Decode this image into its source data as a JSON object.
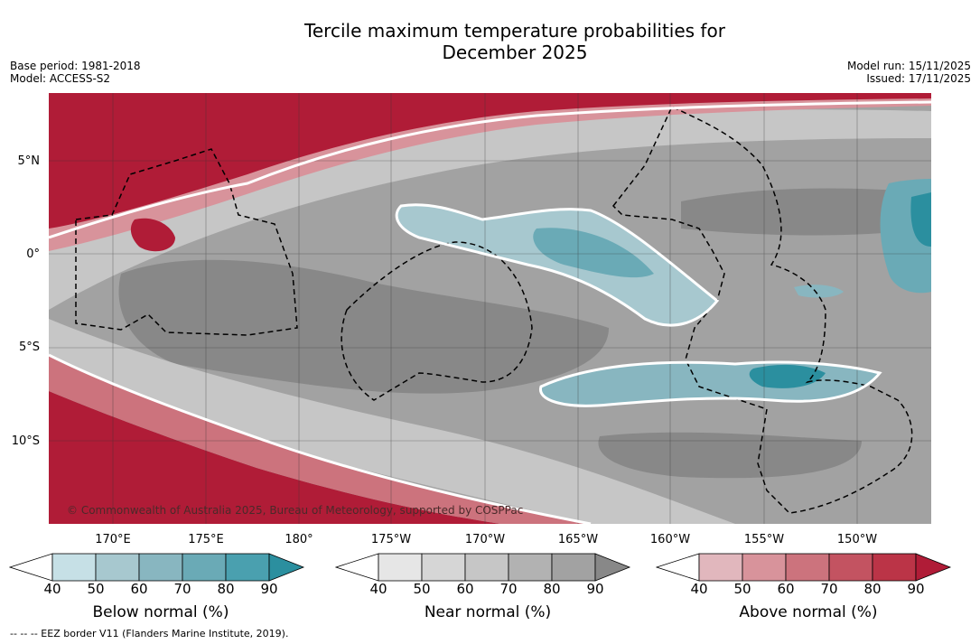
{
  "title_line1": "Tercile maximum temperature probabilities for",
  "title_line2": "December 2025",
  "base_period": "Base period: 1981-2018",
  "model": "Model: ACCESS-S2",
  "model_run": "Model run: 15/11/2025",
  "issued": "Issued: 17/11/2025",
  "copyright": "© Commonwealth of Australia 2025, Bureau of Meteorology, supported by COSPPac",
  "lat_labels": [
    "5°N",
    "0°",
    "5°S",
    "10°S"
  ],
  "lon_labels": [
    "170°E",
    "175°E",
    "180°",
    "175°W",
    "170°W",
    "165°W",
    "160°W",
    "155°W",
    "150°W"
  ],
  "colorbars": {
    "below": {
      "label": "Below normal (%)",
      "ticks": [
        "40",
        "50",
        "60",
        "70",
        "80",
        "90"
      ],
      "colors": [
        "#ffffff",
        "#c6e0e6",
        "#a7c8cf",
        "#88b6c0",
        "#6aaab6",
        "#4aa0af",
        "#2b8f9f"
      ]
    },
    "near": {
      "label": "Near normal (%)",
      "ticks": [
        "40",
        "50",
        "60",
        "70",
        "80",
        "90"
      ],
      "colors": [
        "#ffffff",
        "#e6e6e6",
        "#d6d6d6",
        "#c6c6c6",
        "#b2b2b2",
        "#a2a2a2",
        "#888888"
      ]
    },
    "above": {
      "label": "Above normal (%)",
      "ticks": [
        "40",
        "50",
        "60",
        "70",
        "80",
        "90"
      ],
      "colors": [
        "#ffffff",
        "#e1b7bd",
        "#d8939b",
        "#cc737d",
        "#c35361",
        "#bb3447",
        "#b01c37"
      ]
    }
  },
  "eez_note": "--  --  -- EEZ border V11 (Flanders Marine Institute, 2019)."
}
